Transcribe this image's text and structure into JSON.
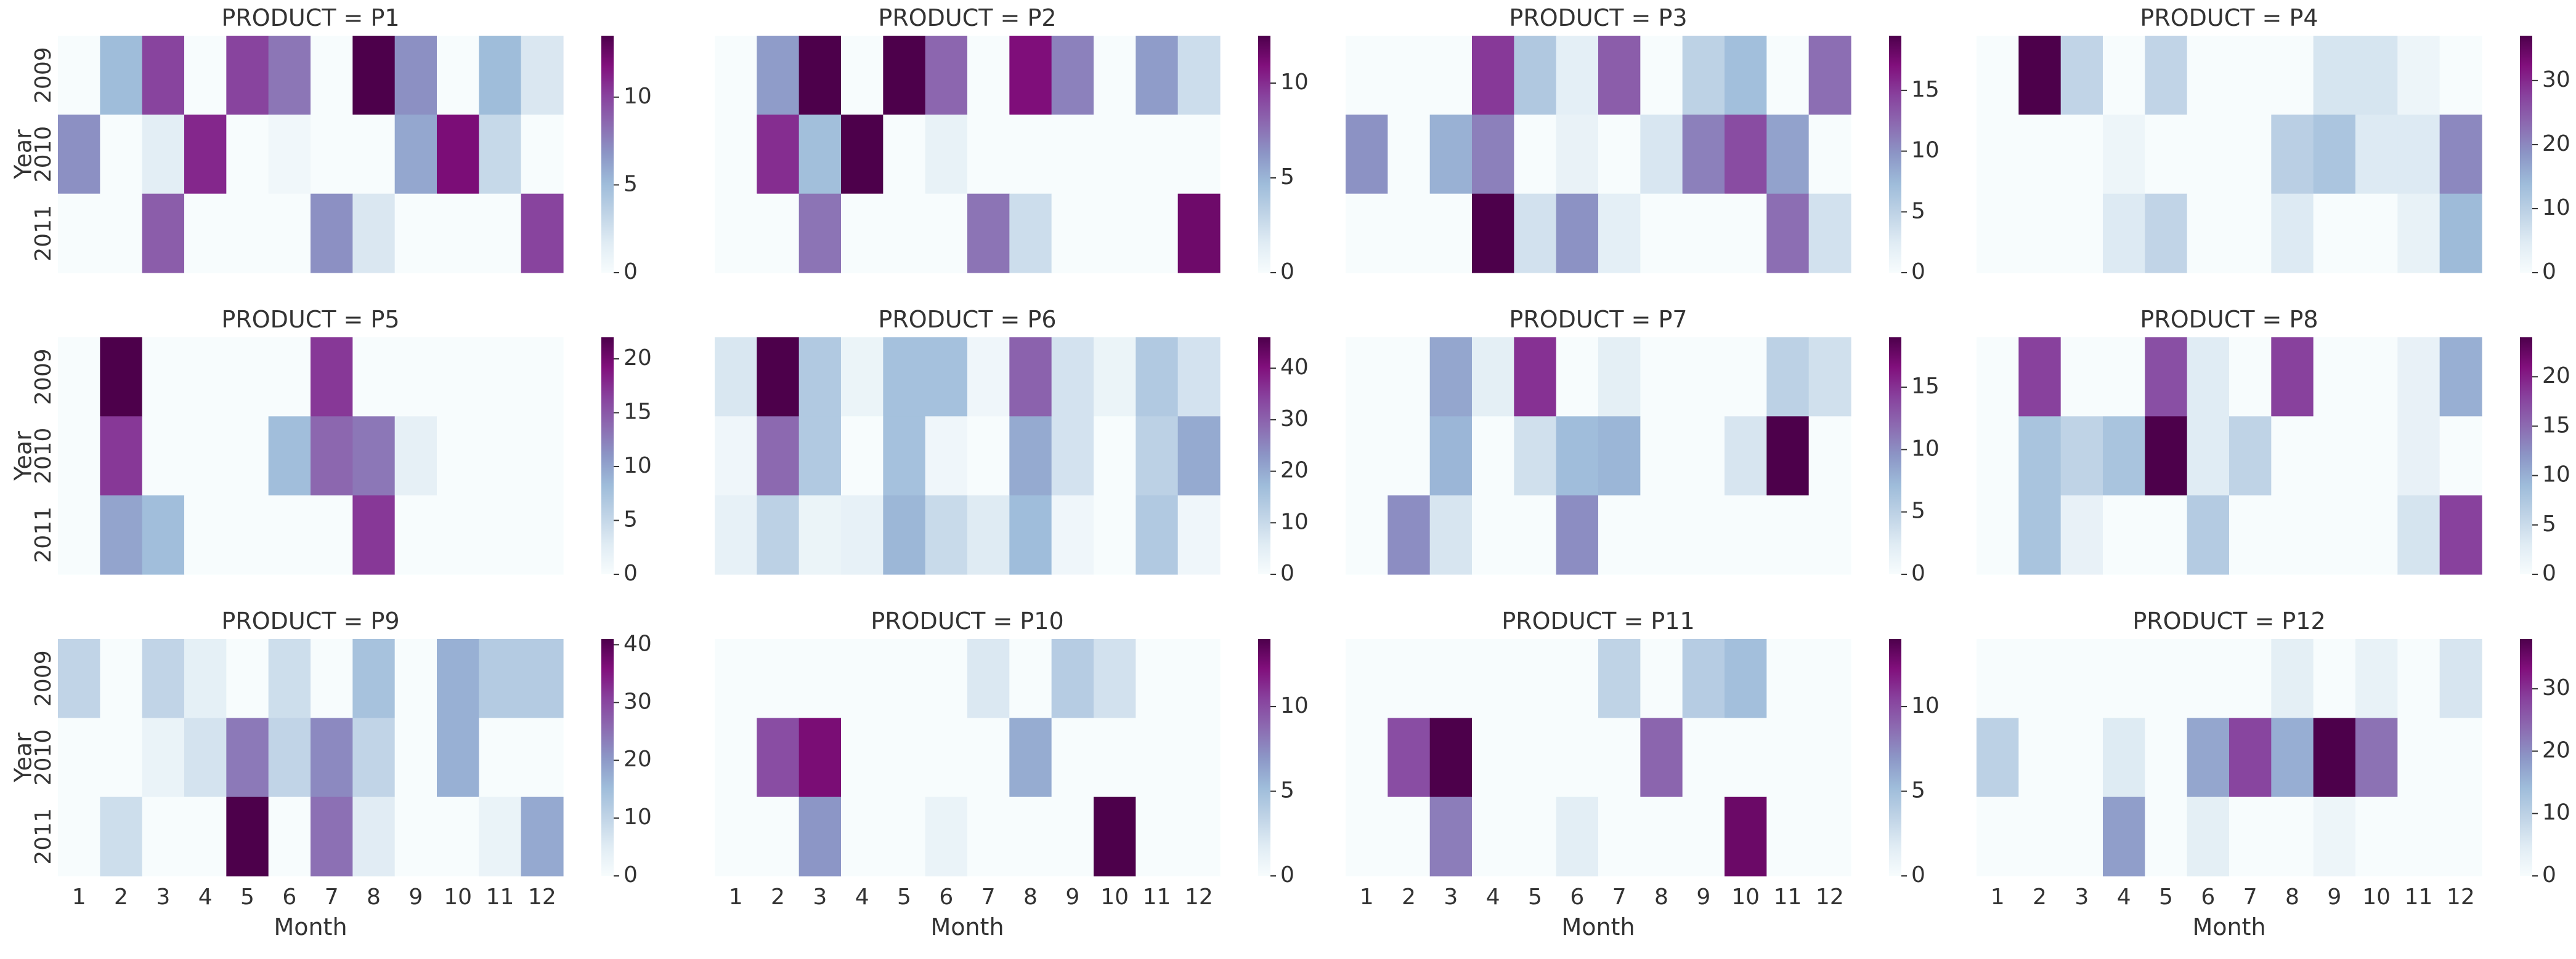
{
  "chart_data": {
    "type": "heatmap",
    "colormap": "BuPu",
    "colormap_stops": [
      "#f7fcfd",
      "#e0ecf4",
      "#bfd3e6",
      "#9ebcda",
      "#8c96c6",
      "#8c6bb1",
      "#88419d",
      "#810f7c",
      "#4d004b"
    ],
    "xlabel": "Month",
    "ylabel": "Year",
    "x_ticks": [
      "1",
      "2",
      "3",
      "4",
      "5",
      "6",
      "7",
      "8",
      "9",
      "10",
      "11",
      "12"
    ],
    "y_ticks": [
      "2009",
      "2010",
      "2011"
    ],
    "panels": [
      {
        "title": "PRODUCT = P1",
        "vmax": 13.5,
        "cbar_ticks": [
          "0",
          "5",
          "10"
        ],
        "values": [
          [
            0,
            5,
            10,
            0,
            10,
            8,
            0,
            13.5,
            7,
            0,
            5,
            2
          ],
          [
            7,
            0,
            1.5,
            11,
            0,
            0.5,
            0,
            0,
            6,
            12,
            3,
            0
          ],
          [
            0,
            0,
            9,
            0,
            0,
            0,
            7,
            2,
            0,
            0,
            0,
            10
          ]
        ]
      },
      {
        "title": "PRODUCT = P2",
        "vmax": 12.5,
        "cbar_ticks": [
          "0",
          "5",
          "10"
        ],
        "values": [
          [
            0,
            6,
            12.5,
            0,
            12.5,
            8,
            0,
            11,
            7,
            0,
            6,
            2.5
          ],
          [
            0,
            10,
            4.5,
            12.5,
            0,
            1,
            0,
            0,
            0,
            0,
            0,
            0
          ],
          [
            0,
            0,
            7.5,
            0,
            0,
            0,
            7.5,
            2.5,
            0,
            0,
            0,
            11.5
          ]
        ]
      },
      {
        "title": "PRODUCT = P3",
        "vmax": 19.5,
        "cbar_ticks": [
          "0",
          "5",
          "10",
          "15"
        ],
        "values": [
          [
            0,
            0,
            0,
            15,
            6,
            2,
            13,
            0,
            5,
            7,
            0,
            12
          ],
          [
            10,
            0,
            8,
            11,
            0,
            1.5,
            0,
            3,
            11,
            14,
            9,
            0
          ],
          [
            0,
            0,
            0,
            19.5,
            3.5,
            10,
            2,
            0,
            0,
            0,
            12,
            3.5
          ]
        ]
      },
      {
        "title": "PRODUCT = P4",
        "vmax": 37,
        "cbar_ticks": [
          "0",
          "10",
          "20",
          "30"
        ],
        "values": [
          [
            0,
            37,
            9,
            0,
            9,
            0,
            0,
            0,
            6,
            6,
            2,
            0
          ],
          [
            0,
            0,
            0,
            2,
            0,
            0,
            0,
            10,
            12,
            5,
            5,
            20
          ],
          [
            0,
            0,
            0,
            5,
            9,
            0,
            0,
            5,
            0,
            0,
            3,
            14
          ]
        ]
      },
      {
        "title": "PRODUCT = P5",
        "vmax": 22,
        "cbar_ticks": [
          "0",
          "5",
          "10",
          "15",
          "20"
        ],
        "values": [
          [
            0,
            22,
            0,
            0,
            0,
            0,
            17,
            0,
            0,
            0,
            0,
            0
          ],
          [
            0,
            17,
            0,
            0,
            0,
            8,
            14,
            13,
            2,
            0,
            0,
            0
          ],
          [
            0,
            10,
            8,
            0,
            0,
            0,
            0,
            17,
            0,
            0,
            0,
            0
          ]
        ]
      },
      {
        "title": "PRODUCT = P6",
        "vmax": 46,
        "cbar_ticks": [
          "0",
          "10",
          "20",
          "30",
          "40"
        ],
        "values": [
          [
            7,
            46,
            14,
            3,
            16,
            16,
            2,
            30,
            8,
            3,
            14,
            8
          ],
          [
            2,
            29,
            14,
            0,
            16,
            2,
            0,
            20,
            8,
            0,
            12,
            20
          ],
          [
            4,
            12,
            3,
            4,
            18,
            10,
            6,
            17,
            2,
            0,
            14,
            2
          ]
        ]
      },
      {
        "title": "PRODUCT = P7",
        "vmax": 19,
        "cbar_ticks": [
          "0",
          "5",
          "10",
          "15"
        ],
        "values": [
          [
            0,
            0,
            8.5,
            2,
            15,
            0,
            2,
            0,
            0,
            0,
            5,
            3.5
          ],
          [
            0,
            0,
            7.5,
            0,
            3.5,
            7,
            7.5,
            0,
            0,
            3,
            19,
            0
          ],
          [
            0,
            10,
            3,
            0,
            0,
            10,
            0,
            0,
            0,
            0,
            0,
            0
          ]
        ]
      },
      {
        "title": "PRODUCT = P8",
        "vmax": 24,
        "cbar_ticks": [
          "0",
          "5",
          "10",
          "15",
          "20"
        ],
        "values": [
          [
            0,
            18,
            0,
            0,
            17,
            3,
            0,
            18,
            0,
            0,
            2,
            10
          ],
          [
            0,
            8,
            6,
            8,
            24,
            3,
            6,
            0,
            0,
            0,
            2,
            0
          ],
          [
            0,
            8,
            2,
            0,
            0,
            7,
            0,
            0,
            0,
            0,
            4,
            18
          ]
        ]
      },
      {
        "title": "PRODUCT = P9",
        "vmax": 41,
        "cbar_ticks": [
          "0",
          "10",
          "20",
          "30",
          "40"
        ],
        "values": [
          [
            10,
            0,
            10,
            4,
            0,
            8,
            0,
            14,
            0,
            17,
            12,
            12
          ],
          [
            0,
            0,
            3,
            7,
            24,
            10,
            22,
            10,
            0,
            17,
            0,
            0
          ],
          [
            0,
            8,
            0,
            0,
            41,
            0,
            25,
            5,
            0,
            0,
            3,
            18
          ]
        ]
      },
      {
        "title": "PRODUCT = P10",
        "vmax": 14,
        "cbar_ticks": [
          "0",
          "5",
          "10"
        ],
        "values": [
          [
            0,
            0,
            0,
            0,
            0,
            0,
            2,
            0,
            4,
            2.5,
            0,
            0
          ],
          [
            0,
            10,
            12.5,
            0,
            0,
            0,
            0,
            6,
            0,
            0,
            0,
            0
          ],
          [
            0,
            0,
            7,
            0,
            0,
            1,
            0,
            0,
            0,
            14,
            0,
            0
          ]
        ]
      },
      {
        "title": "PRODUCT = P11",
        "vmax": 14,
        "cbar_ticks": [
          "0",
          "5",
          "10"
        ],
        "values": [
          [
            0,
            0,
            0,
            0,
            0,
            0,
            3.5,
            0,
            4,
            5,
            0,
            0
          ],
          [
            0,
            10,
            14,
            0,
            0,
            0,
            0,
            9,
            0,
            0,
            0,
            0
          ],
          [
            0,
            0,
            8,
            0,
            0,
            1.5,
            0,
            0,
            0,
            13,
            0,
            0
          ]
        ]
      },
      {
        "title": "PRODUCT = P12",
        "vmax": 38,
        "cbar_ticks": [
          "0",
          "10",
          "20",
          "30"
        ],
        "values": [
          [
            0,
            0,
            0,
            0,
            0,
            0,
            0,
            4,
            0,
            3,
            0,
            6
          ],
          [
            10,
            0,
            0,
            5,
            0,
            17,
            28,
            16,
            38,
            23,
            0,
            0
          ],
          [
            0,
            0,
            0,
            18,
            0,
            4,
            0,
            0,
            2,
            0,
            0,
            0
          ]
        ]
      }
    ]
  }
}
